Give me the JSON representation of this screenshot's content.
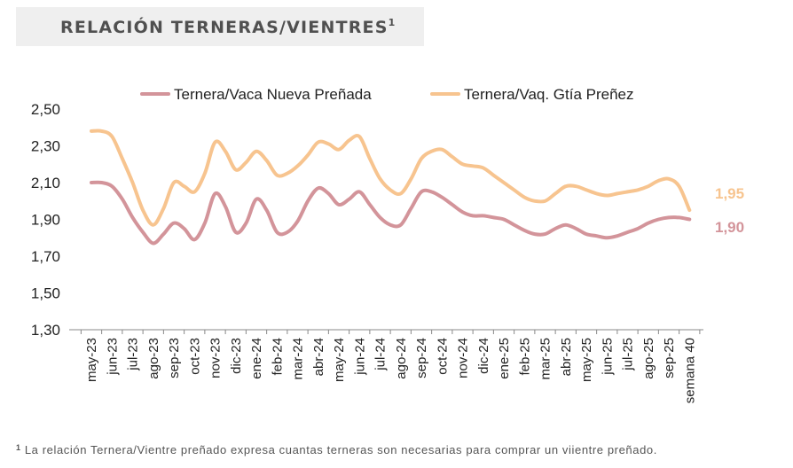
{
  "header": {
    "title": "RELACIÓN TERNERAS/VIENTRES",
    "title_sup": "1"
  },
  "footnote": {
    "marker": "1",
    "text": "La relación Ternera/Vientre preñado expresa cuantas terneras son necesarias para comprar un viientre preñado."
  },
  "chart_data": {
    "type": "line",
    "title": "RELACIÓN TERNERAS/VIENTRES",
    "ylim": [
      1.3,
      2.5
    ],
    "yticks": [
      "2,50",
      "2,30",
      "2,10",
      "1,90",
      "1,70",
      "1,50",
      "1,30"
    ],
    "ytick_values": [
      2.5,
      2.3,
      2.1,
      1.9,
      1.7,
      1.5,
      1.3
    ],
    "categories": [
      "may-23",
      "jun-23",
      "jul-23",
      "ago-23",
      "sep-23",
      "oct-23",
      "nov-23",
      "dic-23",
      "ene-24",
      "feb-24",
      "mar-24",
      "abr-24",
      "may-24",
      "jun-24",
      "jul-24",
      "ago-24",
      "sep-24",
      "oct-24",
      "nov-24",
      "dic-24",
      "ene-25",
      "feb-25",
      "mar-25",
      "abr-25",
      "may-25",
      "jun-25",
      "jul-25",
      "ago-25",
      "sep-25",
      "semana 40"
    ],
    "legend_position": "top",
    "grid": false,
    "series": [
      {
        "name": "Ternera/Vaca Nueva Preñada",
        "color": "#d3949a",
        "end_label": "1,90",
        "points": [
          [
            0,
            2.1
          ],
          [
            0.5,
            2.1
          ],
          [
            1,
            2.08
          ],
          [
            1.5,
            2.01
          ],
          [
            2,
            1.91
          ],
          [
            2.5,
            1.83
          ],
          [
            3,
            1.77
          ],
          [
            3.5,
            1.82
          ],
          [
            4,
            1.88
          ],
          [
            4.5,
            1.85
          ],
          [
            5,
            1.79
          ],
          [
            5.5,
            1.88
          ],
          [
            6,
            2.04
          ],
          [
            6.5,
            1.97
          ],
          [
            7,
            1.83
          ],
          [
            7.5,
            1.88
          ],
          [
            8,
            2.01
          ],
          [
            8.5,
            1.95
          ],
          [
            9,
            1.83
          ],
          [
            9.5,
            1.83
          ],
          [
            10,
            1.89
          ],
          [
            10.5,
            2.0
          ],
          [
            11,
            2.07
          ],
          [
            11.5,
            2.04
          ],
          [
            12,
            1.98
          ],
          [
            12.5,
            2.01
          ],
          [
            13,
            2.05
          ],
          [
            13.5,
            1.98
          ],
          [
            14,
            1.91
          ],
          [
            14.5,
            1.87
          ],
          [
            15,
            1.87
          ],
          [
            15.5,
            1.96
          ],
          [
            16,
            2.05
          ],
          [
            16.5,
            2.05
          ],
          [
            17,
            2.02
          ],
          [
            17.5,
            1.98
          ],
          [
            18,
            1.94
          ],
          [
            18.5,
            1.92
          ],
          [
            19,
            1.92
          ],
          [
            19.5,
            1.91
          ],
          [
            20,
            1.9
          ],
          [
            20.5,
            1.87
          ],
          [
            21,
            1.84
          ],
          [
            21.5,
            1.82
          ],
          [
            22,
            1.82
          ],
          [
            22.5,
            1.85
          ],
          [
            23,
            1.87
          ],
          [
            23.5,
            1.85
          ],
          [
            24,
            1.82
          ],
          [
            24.5,
            1.81
          ],
          [
            25,
            1.8
          ],
          [
            25.5,
            1.81
          ],
          [
            26,
            1.83
          ],
          [
            26.5,
            1.85
          ],
          [
            27,
            1.88
          ],
          [
            27.5,
            1.9
          ],
          [
            28,
            1.91
          ],
          [
            28.5,
            1.91
          ],
          [
            29,
            1.9
          ]
        ]
      },
      {
        "name": "Ternera/Vaq. Gtía Preñez",
        "color": "#f7c48f",
        "end_label": "1,95",
        "points": [
          [
            0,
            2.38
          ],
          [
            0.5,
            2.38
          ],
          [
            1,
            2.35
          ],
          [
            1.5,
            2.23
          ],
          [
            2,
            2.1
          ],
          [
            2.5,
            1.95
          ],
          [
            3,
            1.87
          ],
          [
            3.5,
            1.96
          ],
          [
            4,
            2.1
          ],
          [
            4.5,
            2.08
          ],
          [
            5,
            2.05
          ],
          [
            5.5,
            2.15
          ],
          [
            6,
            2.32
          ],
          [
            6.5,
            2.27
          ],
          [
            7,
            2.17
          ],
          [
            7.5,
            2.21
          ],
          [
            8,
            2.27
          ],
          [
            8.5,
            2.22
          ],
          [
            9,
            2.14
          ],
          [
            9.5,
            2.15
          ],
          [
            10,
            2.19
          ],
          [
            10.5,
            2.25
          ],
          [
            11,
            2.32
          ],
          [
            11.5,
            2.31
          ],
          [
            12,
            2.28
          ],
          [
            12.5,
            2.33
          ],
          [
            13,
            2.35
          ],
          [
            13.5,
            2.23
          ],
          [
            14,
            2.12
          ],
          [
            14.5,
            2.06
          ],
          [
            15,
            2.04
          ],
          [
            15.5,
            2.12
          ],
          [
            16,
            2.23
          ],
          [
            16.5,
            2.27
          ],
          [
            17,
            2.28
          ],
          [
            17.5,
            2.24
          ],
          [
            18,
            2.2
          ],
          [
            18.5,
            2.19
          ],
          [
            19,
            2.18
          ],
          [
            19.5,
            2.14
          ],
          [
            20,
            2.1
          ],
          [
            20.5,
            2.06
          ],
          [
            21,
            2.02
          ],
          [
            21.5,
            2.0
          ],
          [
            22,
            2.0
          ],
          [
            22.5,
            2.04
          ],
          [
            23,
            2.08
          ],
          [
            23.5,
            2.08
          ],
          [
            24,
            2.06
          ],
          [
            24.5,
            2.04
          ],
          [
            25,
            2.03
          ],
          [
            25.5,
            2.04
          ],
          [
            26,
            2.05
          ],
          [
            26.5,
            2.06
          ],
          [
            27,
            2.08
          ],
          [
            27.5,
            2.11
          ],
          [
            28,
            2.12
          ],
          [
            28.5,
            2.08
          ],
          [
            29,
            1.95
          ]
        ]
      }
    ]
  }
}
